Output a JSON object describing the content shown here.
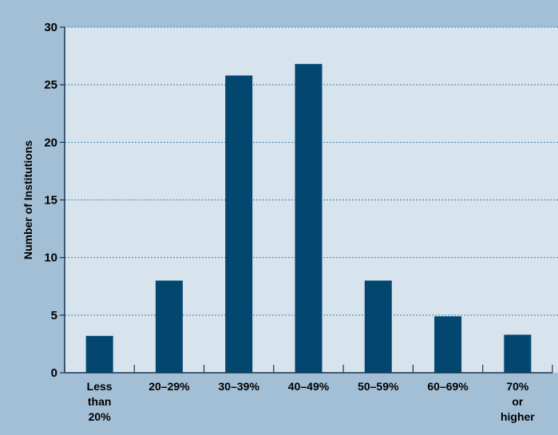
{
  "colors": {
    "page_background": "#a3bfd6",
    "plot_background": "#d7e4ed",
    "bar": "#034770",
    "gridline": "#3f7fae",
    "axis": "#1a3550"
  },
  "chart_data": {
    "type": "bar",
    "title": "",
    "xlabel": "",
    "ylabel": "Number of Institutions",
    "ylim": [
      0,
      30
    ],
    "yticks": [
      0,
      5,
      10,
      15,
      20,
      25,
      30
    ],
    "grid": true,
    "legend": "none",
    "categories": [
      [
        "Less",
        "than",
        "20%"
      ],
      [
        "20–29%"
      ],
      [
        "30–39%"
      ],
      [
        "40–49%"
      ],
      [
        "50–59%"
      ],
      [
        "60–69%"
      ],
      [
        "70%",
        "or",
        "higher"
      ]
    ],
    "values": [
      3.2,
      8,
      25.8,
      26.8,
      8,
      4.9,
      3.3
    ]
  }
}
